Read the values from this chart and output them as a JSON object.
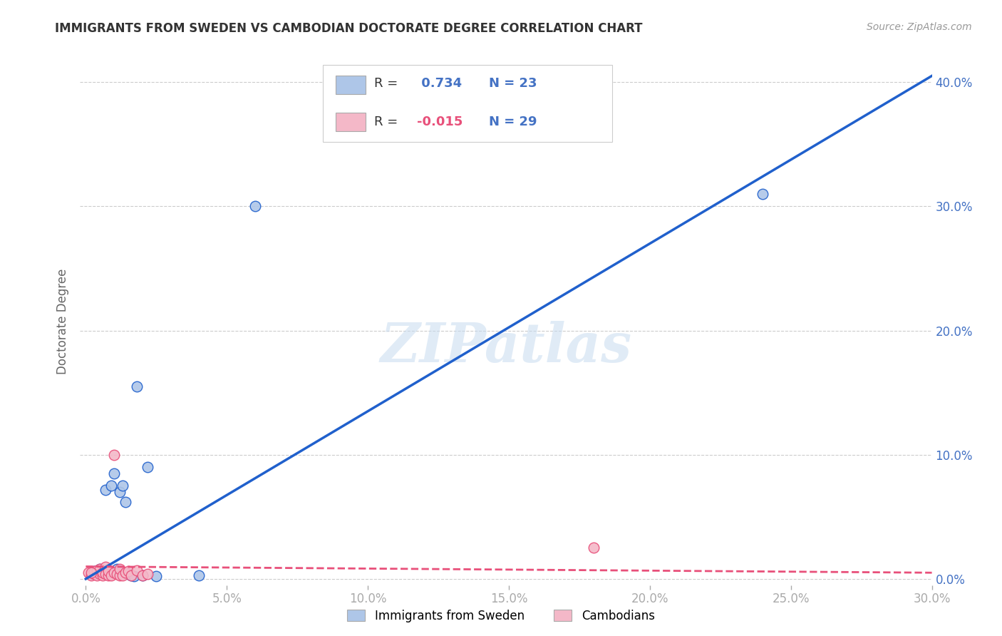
{
  "title": "IMMIGRANTS FROM SWEDEN VS CAMBODIAN DOCTORATE DEGREE CORRELATION CHART",
  "source": "Source: ZipAtlas.com",
  "ylabel": "Doctorate Degree",
  "xlim": [
    -0.2,
    30.0
  ],
  "ylim": [
    -0.5,
    42.0
  ],
  "xticks": [
    0.0,
    5.0,
    10.0,
    15.0,
    20.0,
    25.0,
    30.0
  ],
  "xtick_labels": [
    "0.0%",
    "5.0%",
    "10.0%",
    "15.0%",
    "20.0%",
    "25.0%",
    "30.0%"
  ],
  "yticks": [
    0.0,
    10.0,
    20.0,
    30.0,
    40.0
  ],
  "ytick_labels": [
    "0.0%",
    "10.0%",
    "20.0%",
    "30.0%",
    "40.0%"
  ],
  "watermark": "ZIPatlas",
  "legend_r_sweden": "0.734",
  "legend_n_sweden": "23",
  "legend_r_cambodian": "-0.015",
  "legend_n_cambodian": "29",
  "sweden_color": "#aec6e8",
  "cambodian_color": "#f4b8c8",
  "sweden_line_color": "#2060cc",
  "cambodian_line_color": "#e8507a",
  "background_color": "#ffffff",
  "grid_color": "#cccccc",
  "title_color": "#333333",
  "tick_color": "#4472c4",
  "sweden_scatter_x": [
    0.2,
    0.3,
    0.4,
    0.5,
    0.6,
    0.7,
    0.8,
    0.9,
    1.0,
    1.1,
    1.2,
    1.3,
    1.4,
    1.5,
    1.6,
    1.7,
    1.8,
    2.0,
    2.2,
    2.5,
    4.0,
    6.0,
    24.0
  ],
  "sweden_scatter_y": [
    0.4,
    0.6,
    0.5,
    0.8,
    0.6,
    7.2,
    0.7,
    7.5,
    8.5,
    0.8,
    7.0,
    7.5,
    6.2,
    0.4,
    0.3,
    0.2,
    15.5,
    0.3,
    9.0,
    0.2,
    0.3,
    30.0,
    31.0
  ],
  "cambodian_scatter_x": [
    0.1,
    0.2,
    0.3,
    0.3,
    0.4,
    0.4,
    0.5,
    0.5,
    0.6,
    0.6,
    0.7,
    0.7,
    0.8,
    0.8,
    0.9,
    1.0,
    1.0,
    1.1,
    1.2,
    1.2,
    1.3,
    1.4,
    1.5,
    1.6,
    1.8,
    2.0,
    2.2,
    18.0,
    0.2
  ],
  "cambodian_scatter_y": [
    0.5,
    0.3,
    0.4,
    0.6,
    0.3,
    0.7,
    0.4,
    0.8,
    0.3,
    0.5,
    1.0,
    0.4,
    0.3,
    0.6,
    0.3,
    0.5,
    10.0,
    0.4,
    0.3,
    0.8,
    0.3,
    0.5,
    0.6,
    0.3,
    0.7,
    0.3,
    0.4,
    2.5,
    0.5
  ],
  "sweden_trend_x": [
    0.0,
    30.0
  ],
  "sweden_trend_y": [
    0.0,
    40.5
  ],
  "cambodian_trend_x": [
    0.0,
    30.0
  ],
  "cambodian_trend_y": [
    1.0,
    0.5
  ]
}
